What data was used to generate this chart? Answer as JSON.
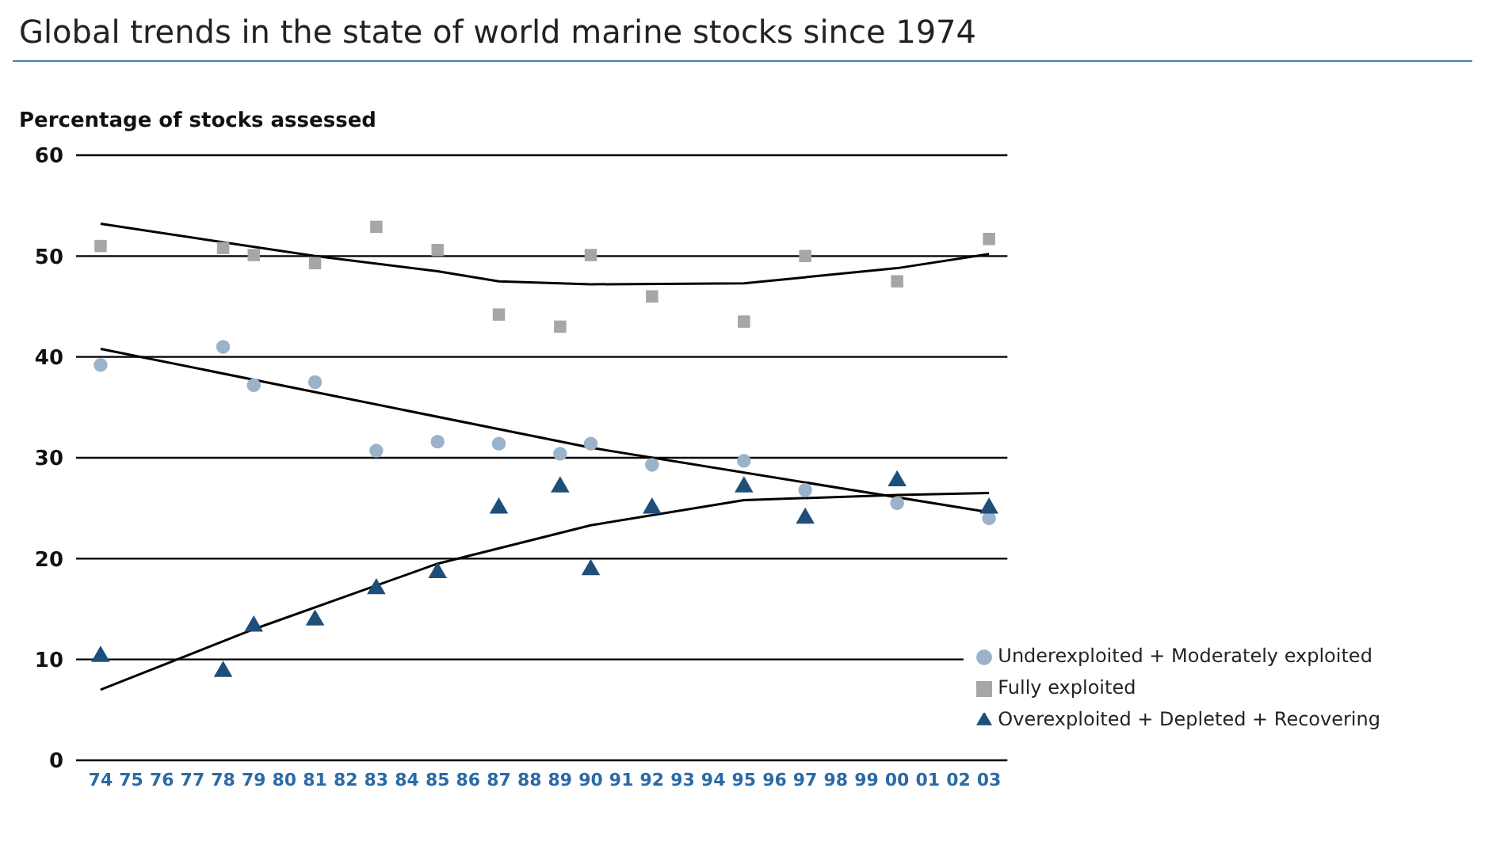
{
  "chart_data": {
    "type": "scatter",
    "title": "Global trends in the state of world marine stocks since 1974",
    "ylabel": "Percentage of stocks assessed",
    "categories": [
      "74",
      "75",
      "76",
      "77",
      "78",
      "79",
      "80",
      "81",
      "82",
      "83",
      "84",
      "85",
      "86",
      "87",
      "88",
      "89",
      "90",
      "91",
      "92",
      "93",
      "94",
      "95",
      "96",
      "97",
      "98",
      "99",
      "00",
      "01",
      "02",
      "03"
    ],
    "ylim": [
      0,
      60
    ],
    "yticks": [
      0,
      10,
      20,
      30,
      40,
      50,
      60
    ],
    "grid": "y",
    "legend": "bottom right",
    "series": [
      {
        "name": "Underexploited + Moderately exploited",
        "color": "#9ab3c9",
        "marker": "circle",
        "values": [
          39.2,
          null,
          null,
          null,
          41,
          37.2,
          null,
          37.5,
          null,
          30.7,
          null,
          31.6,
          null,
          31.4,
          null,
          30.4,
          31.4,
          null,
          29.3,
          null,
          null,
          29.7,
          null,
          26.8,
          null,
          null,
          25.5,
          null,
          null,
          24
        ]
      },
      {
        "name": "Fully exploited",
        "color": "#a6a6a6",
        "marker": "square",
        "values": [
          51,
          null,
          null,
          null,
          50.8,
          50.1,
          null,
          49.3,
          null,
          52.9,
          null,
          50.6,
          null,
          44.2,
          null,
          43,
          50.1,
          null,
          46,
          null,
          null,
          43.5,
          null,
          50,
          null,
          null,
          47.5,
          null,
          null,
          51.7
        ]
      },
      {
        "name": "Overexploited + Depleted + Recovering",
        "color": "#1f4e79",
        "marker": "triangle",
        "values": [
          10.3,
          null,
          null,
          null,
          8.8,
          13.3,
          null,
          13.9,
          null,
          17,
          null,
          18.6,
          null,
          25,
          null,
          27.1,
          18.9,
          null,
          25,
          null,
          null,
          27.1,
          null,
          24,
          null,
          null,
          27.7,
          null,
          null,
          25
        ]
      },
      {
        "type": "line",
        "color": "#000000",
        "line_style": "solid",
        "values": [
          40.8,
          null,
          null,
          null,
          null,
          null,
          null,
          null,
          null,
          null,
          null,
          null,
          null,
          null,
          null,
          null,
          31,
          null,
          null,
          null,
          null,
          null,
          null,
          null,
          null,
          null,
          null,
          null,
          null,
          24.6
        ]
      },
      {
        "type": "line",
        "color": "#000000",
        "line_style": "solid",
        "values": [
          53.2,
          null,
          null,
          null,
          null,
          null,
          null,
          50,
          null,
          null,
          null,
          48.5,
          null,
          47.5,
          null,
          null,
          47.2,
          null,
          null,
          null,
          null,
          47.3,
          null,
          null,
          null,
          null,
          48.8,
          null,
          null,
          50.2
        ]
      },
      {
        "type": "line",
        "color": "#000000",
        "line_style": "solid",
        "values": [
          7,
          null,
          null,
          null,
          null,
          13,
          null,
          null,
          null,
          null,
          null,
          19.5,
          null,
          null,
          null,
          null,
          23.3,
          null,
          null,
          null,
          null,
          25.8,
          null,
          null,
          null,
          null,
          26.3,
          null,
          null,
          26.5
        ]
      }
    ]
  }
}
